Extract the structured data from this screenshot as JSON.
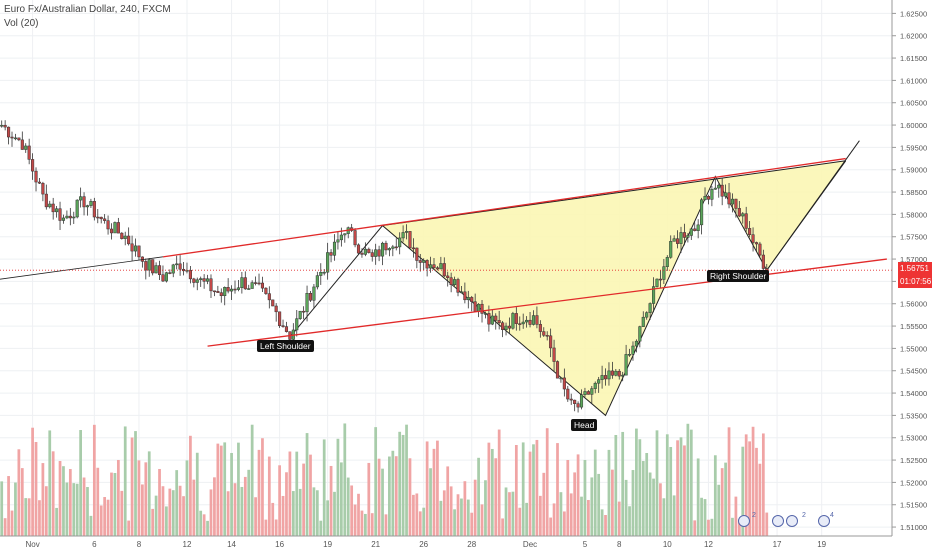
{
  "header": {
    "symbol_line": "Euro Fx/Australian Dollar, 240, FXCM",
    "indicator": "Vol (20)"
  },
  "price_tags": {
    "current_price": "1.56751",
    "countdown": "01:07:56"
  },
  "pattern_labels": {
    "left_shoulder": "Left Shoulder",
    "head": "Head",
    "right_shoulder": "Right Shoulder"
  },
  "colors": {
    "up": "#5aa55a",
    "down": "#c24848",
    "vol_up": "#a8ccaa",
    "vol_down": "#f0a4a4",
    "trendline": "#e12a2a",
    "pattern_fill": "#fbf6b4",
    "price_tag_bg": "#ee3333"
  },
  "events": [
    "2",
    "2",
    "4"
  ],
  "chart_data": {
    "type": "candlestick",
    "title": "Euro Fx/Australian Dollar, 240, FXCM",
    "ylim": [
      1.508,
      1.628
    ],
    "y_ticks": [
      "1.62500",
      "1.62000",
      "1.61500",
      "1.61000",
      "1.60500",
      "1.60000",
      "1.59500",
      "1.59000",
      "1.58500",
      "1.58000",
      "1.57500",
      "1.57000",
      "1.56500",
      "1.56000",
      "1.55500",
      "1.55000",
      "1.54500",
      "1.54000",
      "1.53500",
      "1.53000",
      "1.52500",
      "1.52000",
      "1.51500",
      "1.51000"
    ],
    "x_ticks": [
      "Nov",
      "6",
      "8",
      "12",
      "14",
      "16",
      "19",
      "21",
      "26",
      "28",
      "Dec",
      "5",
      "8",
      "10",
      "12",
      "17",
      "19"
    ],
    "last_price": 1.56751,
    "path_points": [
      [
        0,
        1.6
      ],
      [
        6,
        1.596
      ],
      [
        12,
        1.584
      ],
      [
        18,
        1.579
      ],
      [
        24,
        1.583
      ],
      [
        30,
        1.578
      ],
      [
        36,
        1.575
      ],
      [
        42,
        1.569
      ],
      [
        47,
        1.566
      ],
      [
        52,
        1.569
      ],
      [
        58,
        1.565
      ],
      [
        64,
        1.562
      ],
      [
        70,
        1.565
      ],
      [
        75,
        1.563
      ],
      [
        80,
        1.558
      ],
      [
        84,
        1.553
      ],
      [
        88,
        1.559
      ],
      [
        92,
        1.566
      ],
      [
        96,
        1.571
      ],
      [
        100,
        1.577
      ],
      [
        104,
        1.573
      ],
      [
        108,
        1.57
      ],
      [
        113,
        1.574
      ],
      [
        118,
        1.575
      ],
      [
        122,
        1.57
      ],
      [
        126,
        1.569
      ],
      [
        130,
        1.567
      ],
      [
        134,
        1.563
      ],
      [
        138,
        1.56
      ],
      [
        142,
        1.556
      ],
      [
        146,
        1.555
      ],
      [
        150,
        1.557
      ],
      [
        155,
        1.557
      ],
      [
        160,
        1.55
      ],
      [
        163,
        1.542
      ],
      [
        166,
        1.537
      ],
      [
        168,
        1.537
      ],
      [
        172,
        1.541
      ],
      [
        176,
        1.543
      ],
      [
        180,
        1.544
      ],
      [
        184,
        1.55
      ],
      [
        188,
        1.558
      ],
      [
        192,
        1.567
      ],
      [
        196,
        1.574
      ],
      [
        199,
        1.576
      ],
      [
        202,
        1.577
      ],
      [
        205,
        1.584
      ],
      [
        208,
        1.587
      ],
      [
        211,
        1.584
      ],
      [
        214,
        1.581
      ],
      [
        217,
        1.578
      ],
      [
        220,
        1.572
      ],
      [
        223,
        1.568
      ]
    ],
    "pattern_points": [
      {
        "name": "left_shoulder_low",
        "x": 84,
        "y": 1.5525
      },
      {
        "name": "neck_peak_1",
        "x": 111,
        "y": 1.5775
      },
      {
        "name": "head_low",
        "x": 176,
        "y": 1.535
      },
      {
        "name": "neck_peak_2",
        "x": 208,
        "y": 1.5885
      },
      {
        "name": "right_shoulder_low",
        "x": 223,
        "y": 1.5675
      },
      {
        "name": "projection",
        "x": 246,
        "y": 1.592
      }
    ],
    "trendlines": [
      {
        "name": "upper",
        "x": [
          47,
          246
        ],
        "y": [
          1.5705,
          1.5925
        ]
      },
      {
        "name": "lower",
        "x": [
          60,
          258
        ],
        "y": [
          1.5505,
          1.57
        ]
      }
    ],
    "volume_ylim": [
      0,
      100
    ]
  }
}
